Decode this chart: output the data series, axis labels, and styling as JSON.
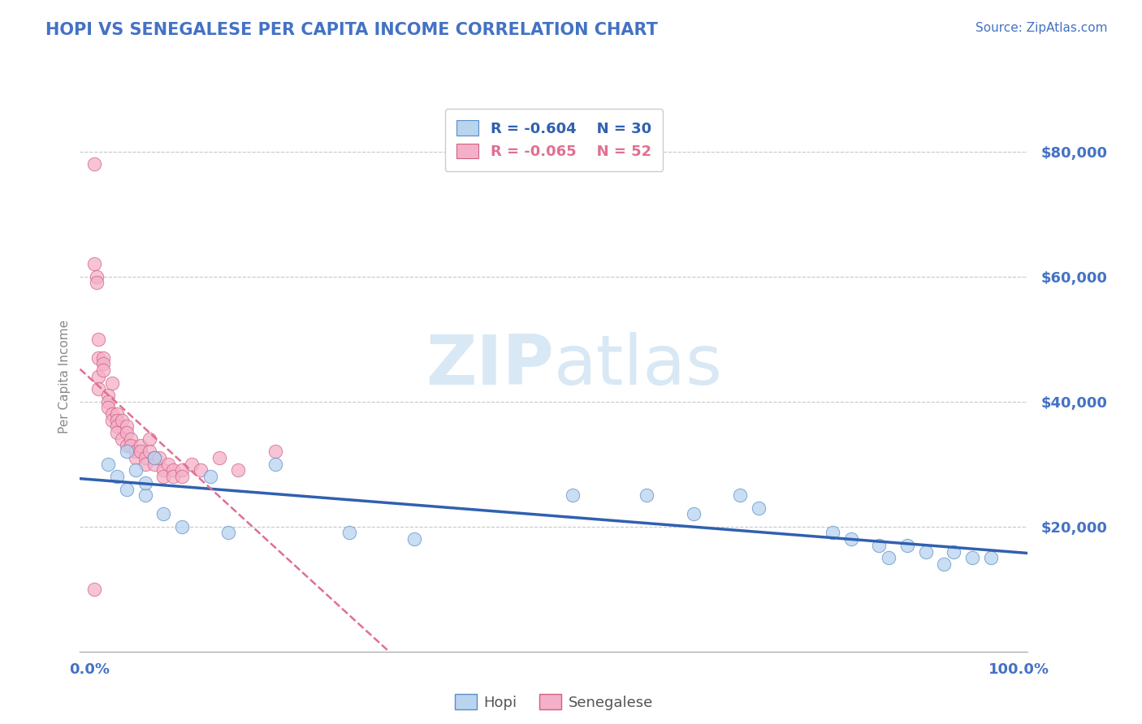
{
  "title": "HOPI VS SENEGALESE PER CAPITA INCOME CORRELATION CHART",
  "source_text": "Source: ZipAtlas.com",
  "ylabel": "Per Capita Income",
  "xlim": [
    -0.01,
    1.01
  ],
  "ylim": [
    0,
    88000
  ],
  "yticks": [
    0,
    20000,
    40000,
    60000,
    80000
  ],
  "xticks": [
    0.0,
    1.0
  ],
  "xtick_labels": [
    "0.0%",
    "100.0%"
  ],
  "ytick_labels": [
    "",
    "$20,000",
    "$40,000",
    "$60,000",
    "$80,000"
  ],
  "hopi_R": -0.604,
  "hopi_N": 30,
  "senegalese_R": -0.065,
  "senegalese_N": 52,
  "hopi_color": "#b8d4ee",
  "senegalese_color": "#f4b0c8",
  "hopi_edge_color": "#5b8dc8",
  "senegalese_edge_color": "#d06080",
  "hopi_line_color": "#3060b0",
  "senegalese_line_color": "#e07090",
  "background_color": "#ffffff",
  "grid_color": "#c8c8c8",
  "title_color": "#4472c4",
  "label_color": "#4472c4",
  "axis_label_color": "#888888",
  "watermark_color": "#d8e8f4",
  "hopi_x": [
    0.02,
    0.03,
    0.04,
    0.04,
    0.05,
    0.06,
    0.06,
    0.07,
    0.08,
    0.1,
    0.13,
    0.15,
    0.2,
    0.28,
    0.35,
    0.52,
    0.6,
    0.65,
    0.7,
    0.72,
    0.8,
    0.82,
    0.85,
    0.86,
    0.88,
    0.9,
    0.92,
    0.93,
    0.95,
    0.97
  ],
  "hopi_y": [
    30000,
    28000,
    26000,
    32000,
    29000,
    25000,
    27000,
    31000,
    22000,
    20000,
    28000,
    19000,
    30000,
    19000,
    18000,
    25000,
    25000,
    22000,
    25000,
    23000,
    19000,
    18000,
    17000,
    15000,
    17000,
    16000,
    14000,
    16000,
    15000,
    15000
  ],
  "senegalese_x": [
    0.005,
    0.005,
    0.005,
    0.008,
    0.008,
    0.01,
    0.01,
    0.01,
    0.01,
    0.015,
    0.015,
    0.015,
    0.02,
    0.02,
    0.02,
    0.025,
    0.025,
    0.025,
    0.03,
    0.03,
    0.03,
    0.03,
    0.035,
    0.035,
    0.04,
    0.04,
    0.04,
    0.045,
    0.045,
    0.05,
    0.05,
    0.055,
    0.055,
    0.06,
    0.06,
    0.065,
    0.065,
    0.07,
    0.07,
    0.075,
    0.08,
    0.08,
    0.085,
    0.09,
    0.09,
    0.1,
    0.1,
    0.11,
    0.12,
    0.14,
    0.16,
    0.2
  ],
  "senegalese_y": [
    78000,
    62000,
    10000,
    60000,
    59000,
    50000,
    47000,
    44000,
    42000,
    47000,
    46000,
    45000,
    41000,
    40000,
    39000,
    43000,
    38000,
    37000,
    38000,
    37000,
    36000,
    35000,
    37000,
    34000,
    36000,
    35000,
    33000,
    34000,
    33000,
    32000,
    31000,
    33000,
    32000,
    31000,
    30000,
    34000,
    32000,
    31000,
    30000,
    31000,
    29000,
    28000,
    30000,
    29000,
    28000,
    29000,
    28000,
    30000,
    29000,
    31000,
    29000,
    32000
  ]
}
